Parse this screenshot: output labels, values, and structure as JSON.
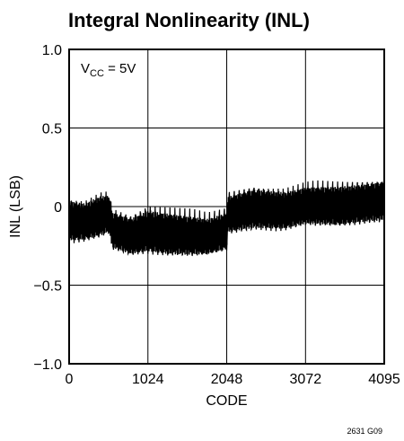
{
  "chart_data": {
    "type": "line",
    "title": "Integral Nonlinearity (INL)",
    "xlabel": "CODE",
    "ylabel": "INL (LSB)",
    "xlim": [
      0,
      4095
    ],
    "ylim": [
      -1.0,
      1.0
    ],
    "x_ticks": [
      0,
      1024,
      2048,
      3072,
      4095
    ],
    "x_tick_labels": [
      "0",
      "1024",
      "2048",
      "3072",
      "4095"
    ],
    "y_ticks": [
      -1.0,
      -0.5,
      0,
      0.5,
      1.0
    ],
    "y_tick_labels": [
      "−1.0",
      "−0.5",
      "0",
      "0.5",
      "1.0"
    ],
    "grid": true,
    "annotation": {
      "main": "V",
      "sub": "CC",
      "rest": " = 5V"
    },
    "figure_id": "2631 G09",
    "series": [
      {
        "style": "dense oscillating trace (envelope)",
        "envelope_points": [
          {
            "x": 0,
            "upper": 0.1,
            "lower": -0.28
          },
          {
            "x": 200,
            "upper": 0.08,
            "lower": -0.27
          },
          {
            "x": 400,
            "upper": 0.13,
            "lower": -0.25
          },
          {
            "x": 520,
            "upper": 0.13,
            "lower": -0.22
          },
          {
            "x": 560,
            "upper": 0.02,
            "lower": -0.32
          },
          {
            "x": 800,
            "upper": -0.02,
            "lower": -0.36
          },
          {
            "x": 1024,
            "upper": 0.04,
            "lower": -0.35
          },
          {
            "x": 1300,
            "upper": 0.02,
            "lower": -0.37
          },
          {
            "x": 1536,
            "upper": 0.0,
            "lower": -0.37
          },
          {
            "x": 1800,
            "upper": -0.02,
            "lower": -0.36
          },
          {
            "x": 2048,
            "upper": 0.02,
            "lower": -0.33
          },
          {
            "x": 2060,
            "upper": 0.12,
            "lower": -0.22
          },
          {
            "x": 2400,
            "upper": 0.17,
            "lower": -0.2
          },
          {
            "x": 2800,
            "upper": 0.15,
            "lower": -0.2
          },
          {
            "x": 3072,
            "upper": 0.18,
            "lower": -0.17
          },
          {
            "x": 3500,
            "upper": 0.19,
            "lower": -0.18
          },
          {
            "x": 3800,
            "upper": 0.2,
            "lower": -0.16
          },
          {
            "x": 4095,
            "upper": 0.22,
            "lower": -0.15
          }
        ]
      }
    ]
  }
}
